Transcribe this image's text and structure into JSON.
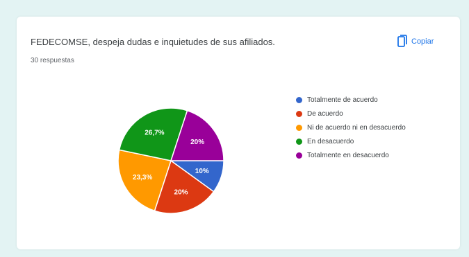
{
  "card": {
    "title": "FEDECOMSE, despeja dudas e inquietudes de sus afiliados.",
    "responses": "30 respuestas",
    "copy_label": "Copiar",
    "copy_icon": "copy-icon"
  },
  "chart_data": {
    "type": "pie",
    "title": "FEDECOMSE, despeja dudas e inquietudes de sus afiliados.",
    "total_label": "30 respuestas",
    "legend_position": "right",
    "series": [
      {
        "name": "Totalmente de acuerdo",
        "value": 10,
        "label": "10%",
        "color": "#3366cc"
      },
      {
        "name": "De acuerdo",
        "value": 20,
        "label": "20%",
        "color": "#dc3912"
      },
      {
        "name": "Ni de acuerdo ni en desacuerdo",
        "value": 23.3,
        "label": "23,3%",
        "color": "#ff9900"
      },
      {
        "name": "En desacuerdo",
        "value": 26.7,
        "label": "26,7%",
        "color": "#109618"
      },
      {
        "name": "Totalmente en desacuerdo",
        "value": 20,
        "label": "20%",
        "color": "#990099"
      }
    ]
  }
}
